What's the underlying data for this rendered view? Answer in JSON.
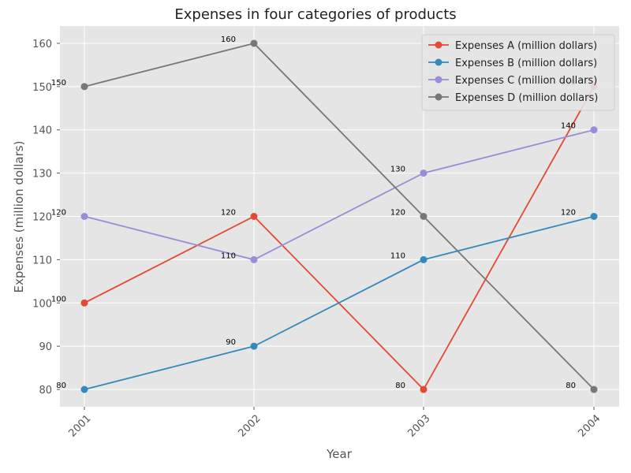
{
  "chart_data": {
    "type": "line",
    "title": "Expenses in four categories of products",
    "xlabel": "Year",
    "ylabel": "Expenses (million dollars)",
    "categories": [
      "2001",
      "2002",
      "2003",
      "2004"
    ],
    "ylim": [
      76,
      164
    ],
    "yticks": [
      80,
      90,
      100,
      110,
      120,
      130,
      140,
      150,
      160
    ],
    "grid": true,
    "legend_position": "top-right",
    "series": [
      {
        "name": "Expenses A (million dollars)",
        "values": [
          100,
          120,
          80,
          150
        ],
        "color": "#E24A33"
      },
      {
        "name": "Expenses B (million dollars)",
        "values": [
          80,
          90,
          110,
          120
        ],
        "color": "#348ABD"
      },
      {
        "name": "Expenses C (million dollars)",
        "values": [
          120,
          110,
          130,
          140
        ],
        "color": "#988ED5"
      },
      {
        "name": "Expenses D (million dollars)",
        "values": [
          150,
          160,
          120,
          80
        ],
        "color": "#777777"
      }
    ]
  }
}
